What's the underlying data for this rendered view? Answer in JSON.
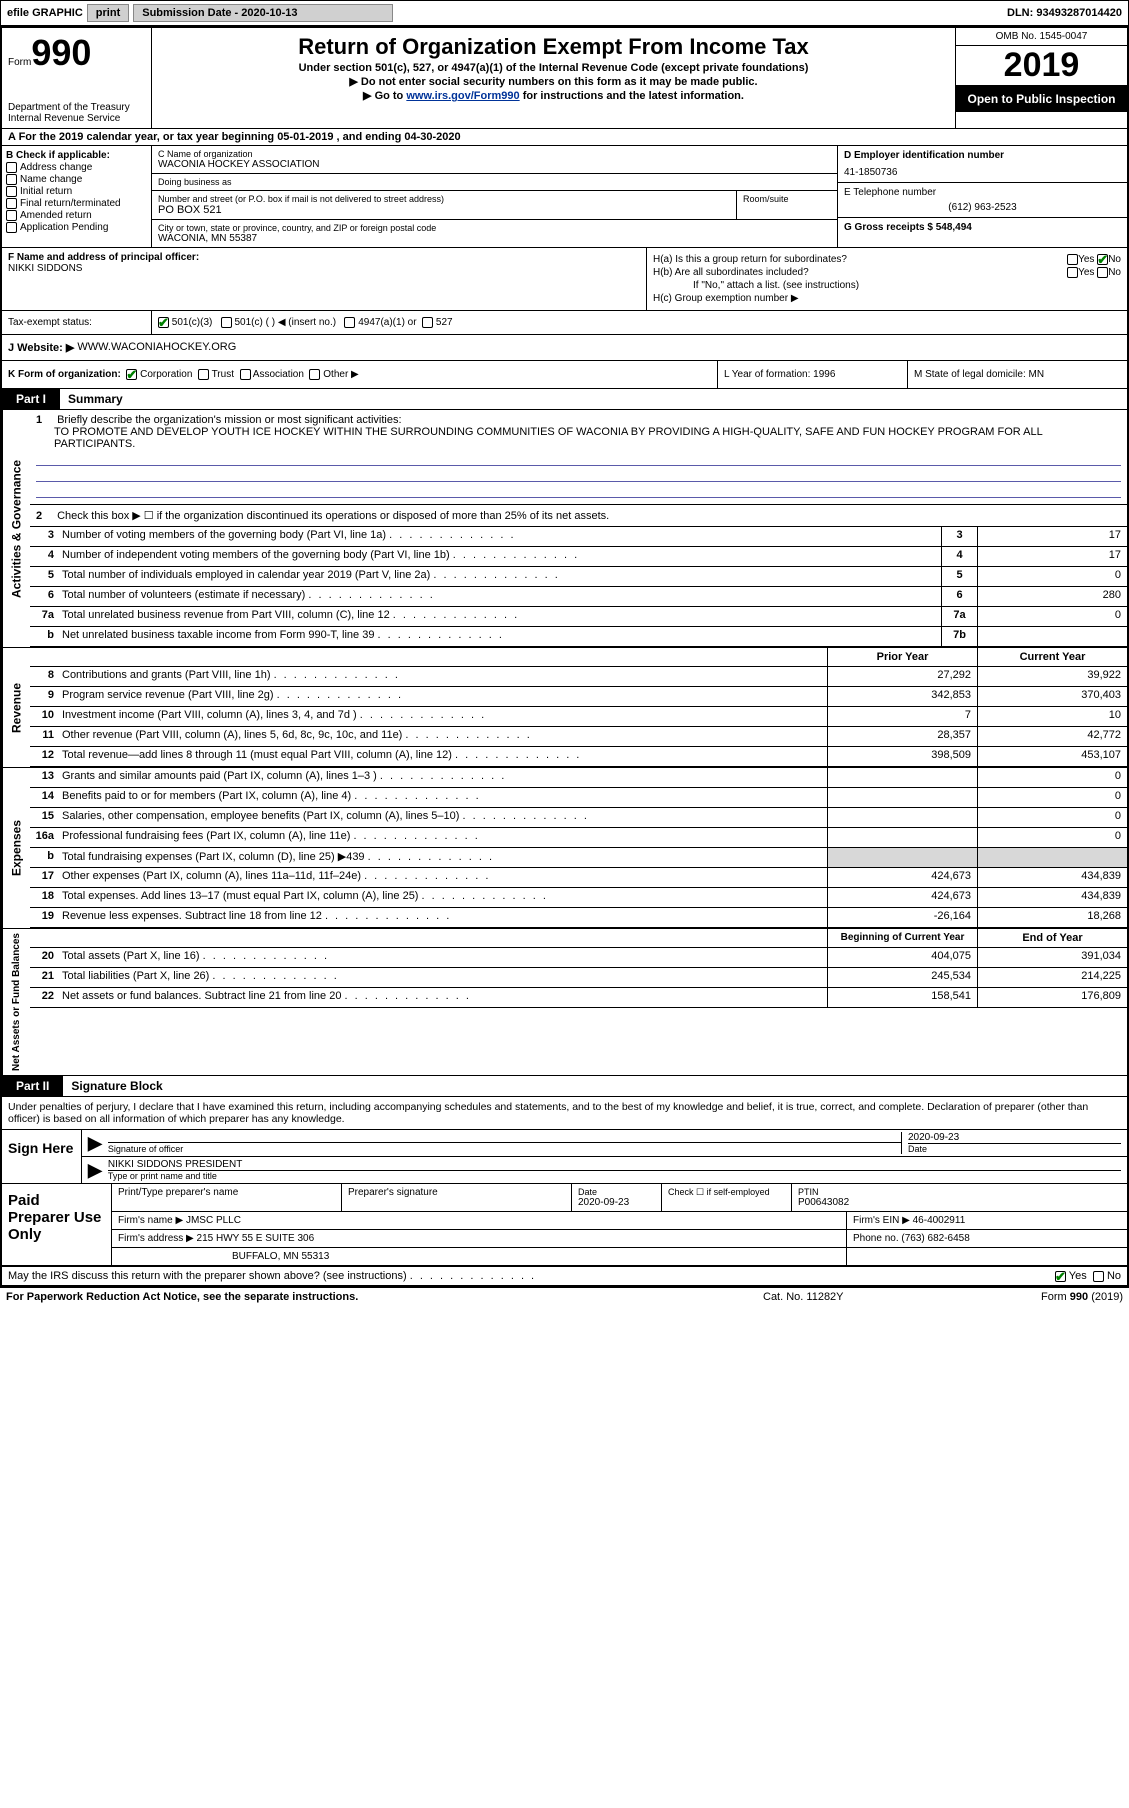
{
  "top": {
    "efile": "efile GRAPHIC",
    "print": "print",
    "submission_label": "Submission Date - 2020-10-13",
    "dln": "DLN: 93493287014420"
  },
  "header": {
    "form_label": "Form",
    "form_number": "990",
    "dept": "Department of the Treasury\nInternal Revenue Service",
    "title": "Return of Organization Exempt From Income Tax",
    "subtitle1": "Under section 501(c), 527, or 4947(a)(1) of the Internal Revenue Code (except private foundations)",
    "subtitle2": "▶ Do not enter social security numbers on this form as it may be made public.",
    "subtitle3_pre": "▶ Go to ",
    "subtitle3_link": "www.irs.gov/Form990",
    "subtitle3_post": " for instructions and the latest information.",
    "omb": "OMB No. 1545-0047",
    "year": "2019",
    "inspect": "Open to Public Inspection"
  },
  "row_a": "A  For the 2019 calendar year, or tax year beginning 05-01-2019   , and ending 04-30-2020",
  "section_b": {
    "b_label": "B Check if applicable:",
    "checks": [
      "Address change",
      "Name change",
      "Initial return",
      "Final return/terminated",
      "Amended return",
      "Application Pending"
    ],
    "c_name_label": "C Name of organization",
    "c_name": "WACONIA HOCKEY ASSOCIATION",
    "dba_label": "Doing business as",
    "dba": "",
    "addr_label": "Number and street (or P.O. box if mail is not delivered to street address)",
    "room_label": "Room/suite",
    "addr": "PO BOX 521",
    "city_label": "City or town, state or province, country, and ZIP or foreign postal code",
    "city": "WACONIA, MN  55387",
    "d_label": "D Employer identification number",
    "d_val": "41-1850736",
    "e_label": "E Telephone number",
    "e_val": "(612) 963-2523",
    "g_label": "G Gross receipts $ 548,494"
  },
  "section_f": {
    "f_label": "F  Name and address of principal officer:",
    "f_name": "NIKKI SIDDONS",
    "ha": "H(a)  Is this a group return for subordinates?",
    "ha_yes": "Yes",
    "ha_no": "No",
    "hb": "H(b)  Are all subordinates included?",
    "hb_yes": "Yes",
    "hb_no": "No",
    "hb_note": "If \"No,\" attach a list. (see instructions)",
    "hc": "H(c)  Group exemption number ▶"
  },
  "tax_status": {
    "label": "Tax-exempt status:",
    "opt1": "501(c)(3)",
    "opt2": "501(c) (  ) ◀ (insert no.)",
    "opt3": "4947(a)(1) or",
    "opt4": "527"
  },
  "row_j": {
    "label": "J  Website: ▶",
    "val": "WWW.WACONIAHOCKEY.ORG"
  },
  "row_k": {
    "k": "K Form of organization:",
    "corp": "Corporation",
    "trust": "Trust",
    "assoc": "Association",
    "other": "Other ▶",
    "l": "L Year of formation: 1996",
    "m": "M State of legal domicile: MN"
  },
  "part1": {
    "tab": "Part I",
    "title": "Summary"
  },
  "side_labels": {
    "gov": "Activities & Governance",
    "rev": "Revenue",
    "exp": "Expenses",
    "net": "Net Assets or Fund Balances"
  },
  "line1": {
    "num": "1",
    "label": "Briefly describe the organization's mission or most significant activities:",
    "text": "TO PROMOTE AND DEVELOP YOUTH ICE HOCKEY WITHIN THE SURROUNDING COMMUNITIES OF WACONIA BY PROVIDING A HIGH-QUALITY, SAFE AND FUN HOCKEY PROGRAM FOR ALL PARTICIPANTS."
  },
  "line2": {
    "num": "2",
    "text": "Check this box ▶ ☐  if the organization discontinued its operations or disposed of more than 25% of its net assets."
  },
  "lines_gov": [
    {
      "num": "3",
      "text": "Number of voting members of the governing body (Part VI, line 1a)",
      "box": "3",
      "val": "17"
    },
    {
      "num": "4",
      "text": "Number of independent voting members of the governing body (Part VI, line 1b)",
      "box": "4",
      "val": "17"
    },
    {
      "num": "5",
      "text": "Total number of individuals employed in calendar year 2019 (Part V, line 2a)",
      "box": "5",
      "val": "0"
    },
    {
      "num": "6",
      "text": "Total number of volunteers (estimate if necessary)",
      "box": "6",
      "val": "280"
    },
    {
      "num": "7a",
      "text": "Total unrelated business revenue from Part VIII, column (C), line 12",
      "box": "7a",
      "val": "0"
    },
    {
      "num": "b",
      "text": "Net unrelated business taxable income from Form 990-T, line 39",
      "box": "7b",
      "val": ""
    }
  ],
  "col_headers": {
    "prior": "Prior Year",
    "current": "Current Year"
  },
  "lines_rev": [
    {
      "num": "8",
      "text": "Contributions and grants (Part VIII, line 1h)",
      "prior": "27,292",
      "current": "39,922"
    },
    {
      "num": "9",
      "text": "Program service revenue (Part VIII, line 2g)",
      "prior": "342,853",
      "current": "370,403"
    },
    {
      "num": "10",
      "text": "Investment income (Part VIII, column (A), lines 3, 4, and 7d )",
      "prior": "7",
      "current": "10"
    },
    {
      "num": "11",
      "text": "Other revenue (Part VIII, column (A), lines 5, 6d, 8c, 9c, 10c, and 11e)",
      "prior": "28,357",
      "current": "42,772"
    },
    {
      "num": "12",
      "text": "Total revenue—add lines 8 through 11 (must equal Part VIII, column (A), line 12)",
      "prior": "398,509",
      "current": "453,107"
    }
  ],
  "lines_exp": [
    {
      "num": "13",
      "text": "Grants and similar amounts paid (Part IX, column (A), lines 1–3 )",
      "prior": "",
      "current": "0"
    },
    {
      "num": "14",
      "text": "Benefits paid to or for members (Part IX, column (A), line 4)",
      "prior": "",
      "current": "0"
    },
    {
      "num": "15",
      "text": "Salaries, other compensation, employee benefits (Part IX, column (A), lines 5–10)",
      "prior": "",
      "current": "0"
    },
    {
      "num": "16a",
      "text": "Professional fundraising fees (Part IX, column (A), line 11e)",
      "prior": "",
      "current": "0"
    },
    {
      "num": "b",
      "text": "Total fundraising expenses (Part IX, column (D), line 25) ▶439",
      "prior": "SHADE",
      "current": "SHADE"
    },
    {
      "num": "17",
      "text": "Other expenses (Part IX, column (A), lines 11a–11d, 11f–24e)",
      "prior": "424,673",
      "current": "434,839"
    },
    {
      "num": "18",
      "text": "Total expenses. Add lines 13–17 (must equal Part IX, column (A), line 25)",
      "prior": "424,673",
      "current": "434,839"
    },
    {
      "num": "19",
      "text": "Revenue less expenses. Subtract line 18 from line 12",
      "prior": "-26,164",
      "current": "18,268"
    }
  ],
  "col_headers2": {
    "begin": "Beginning of Current Year",
    "end": "End of Year"
  },
  "lines_net": [
    {
      "num": "20",
      "text": "Total assets (Part X, line 16)",
      "prior": "404,075",
      "current": "391,034"
    },
    {
      "num": "21",
      "text": "Total liabilities (Part X, line 26)",
      "prior": "245,534",
      "current": "214,225"
    },
    {
      "num": "22",
      "text": "Net assets or fund balances. Subtract line 21 from line 20",
      "prior": "158,541",
      "current": "176,809"
    }
  ],
  "part2": {
    "tab": "Part II",
    "title": "Signature Block"
  },
  "sig_text": "Under penalties of perjury, I declare that I have examined this return, including accompanying schedules and statements, and to the best of my knowledge and belief, it is true, correct, and complete. Declaration of preparer (other than officer) is based on all information of which preparer has any knowledge.",
  "sign": {
    "here": "Sign Here",
    "officer_sig": "Signature of officer",
    "date_label": "Date",
    "date_val": "2020-09-23",
    "name": "NIKKI SIDDONS PRESIDENT",
    "name_label": "Type or print name and title"
  },
  "prep": {
    "label": "Paid Preparer Use Only",
    "r1_name": "Print/Type preparer's name",
    "r1_sig": "Preparer's signature",
    "r1_date_label": "Date",
    "r1_date": "2020-09-23",
    "r1_check": "Check ☐ if self-employed",
    "r1_ptin_label": "PTIN",
    "r1_ptin": "P00643082",
    "r2_firm_label": "Firm's name   ▶",
    "r2_firm": "JMSC PLLC",
    "r2_ein_label": "Firm's EIN ▶",
    "r2_ein": "46-4002911",
    "r3_addr_label": "Firm's address ▶",
    "r3_addr": "215 HWY 55 E SUITE 306",
    "r3_city": "BUFFALO, MN  55313",
    "r3_phone_label": "Phone no.",
    "r3_phone": "(763) 682-6458"
  },
  "discuss": {
    "text": "May the IRS discuss this return with the preparer shown above? (see instructions)",
    "yes": "Yes",
    "no": "No"
  },
  "footer": {
    "left": "For Paperwork Reduction Act Notice, see the separate instructions.",
    "mid": "Cat. No. 11282Y",
    "right_pre": "Form ",
    "right_bold": "990",
    "right_post": " (2019)"
  }
}
